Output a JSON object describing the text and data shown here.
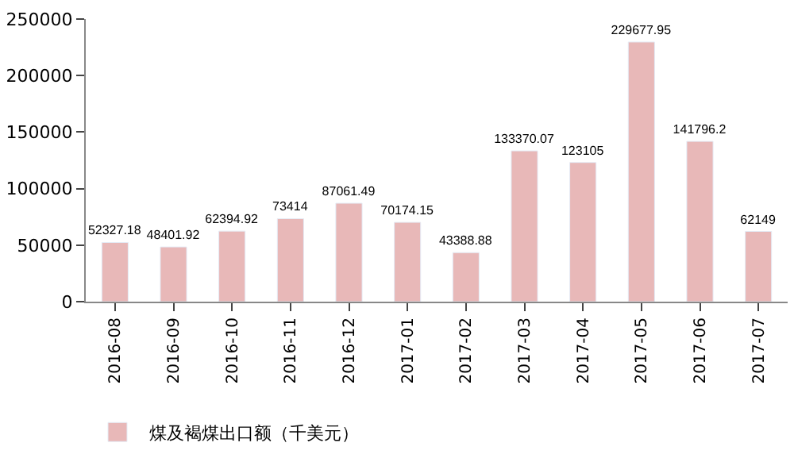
{
  "chart_data": {
    "type": "bar",
    "categories": [
      "2016-08",
      "2016-09",
      "2016-10",
      "2016-11",
      "2016-12",
      "2017-01",
      "2017-02",
      "2017-03",
      "2017-04",
      "2017-05",
      "2017-06",
      "2017-07"
    ],
    "series": [
      {
        "name": "煤及褐煤出口额（千美元）",
        "color": "#e8b8b8",
        "values": [
          52327.18,
          48401.92,
          62394.92,
          73414,
          87061.49,
          70174.15,
          43388.88,
          133370.07,
          123105,
          229677.95,
          141796.2,
          62149
        ]
      }
    ],
    "ylim": [
      0,
      250000
    ],
    "yticks": [
      0,
      50000,
      100000,
      150000,
      200000,
      250000
    ],
    "data_labels": true,
    "legend": "bottom left"
  }
}
